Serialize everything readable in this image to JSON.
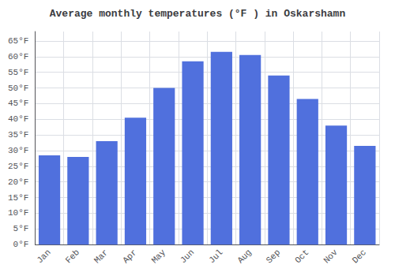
{
  "chart_data": {
    "type": "bar",
    "title": "Average monthly temperatures (°F ) in Oskarshamn",
    "categories": [
      "Jan",
      "Feb",
      "Mar",
      "Apr",
      "May",
      "Jun",
      "Jul",
      "Aug",
      "Sep",
      "Oct",
      "Nov",
      "Dec"
    ],
    "values": [
      28.5,
      28.0,
      33.0,
      40.5,
      50.0,
      58.5,
      61.5,
      60.5,
      54.0,
      46.5,
      38.0,
      31.5
    ],
    "ylim": [
      0,
      68
    ],
    "yticks": [
      {
        "value": 0,
        "label": "0°F"
      },
      {
        "value": 5,
        "label": "5°F"
      },
      {
        "value": 10,
        "label": "10°F"
      },
      {
        "value": 15,
        "label": "15°F"
      },
      {
        "value": 20,
        "label": "20°F"
      },
      {
        "value": 25,
        "label": "25°F"
      },
      {
        "value": 30,
        "label": "30°F"
      },
      {
        "value": 35,
        "label": "35°F"
      },
      {
        "value": 40,
        "label": "40°F"
      },
      {
        "value": 45,
        "label": "45°F"
      },
      {
        "value": 50,
        "label": "50°F"
      },
      {
        "value": 55,
        "label": "55°F"
      },
      {
        "value": 60,
        "label": "60°F"
      },
      {
        "value": 65,
        "label": "65°F"
      }
    ],
    "grid": true
  }
}
